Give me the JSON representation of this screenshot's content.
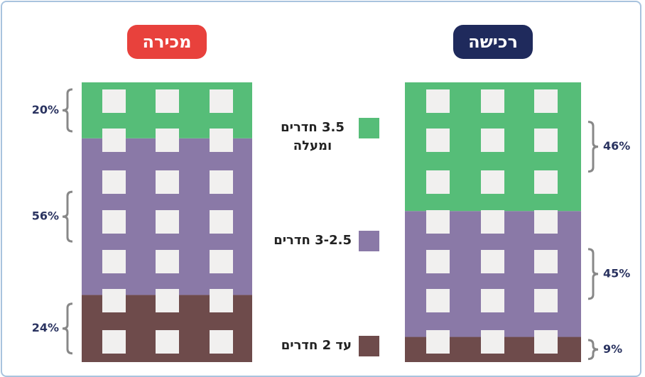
{
  "chart_data": {
    "type": "stacked-building",
    "categories": [
      "מכירה",
      "רכישה"
    ],
    "category_colors": [
      "#e8413c",
      "#1f2a5c"
    ],
    "series": [
      {
        "name": "עד 2 חדרים",
        "color": "#6e4b4b",
        "values": [
          24,
          9
        ],
        "value_labels": [
          "24%",
          "9%"
        ]
      },
      {
        "name": "3-2.5 חדרים",
        "color": "#8a79a7",
        "values": [
          56,
          45
        ],
        "value_labels": [
          "56%",
          "45%"
        ]
      },
      {
        "name": "3.5 חדרים ומעלה",
        "color": "#56bd78",
        "values": [
          20,
          46
        ],
        "value_labels": [
          "20%",
          "46%"
        ]
      }
    ]
  }
}
